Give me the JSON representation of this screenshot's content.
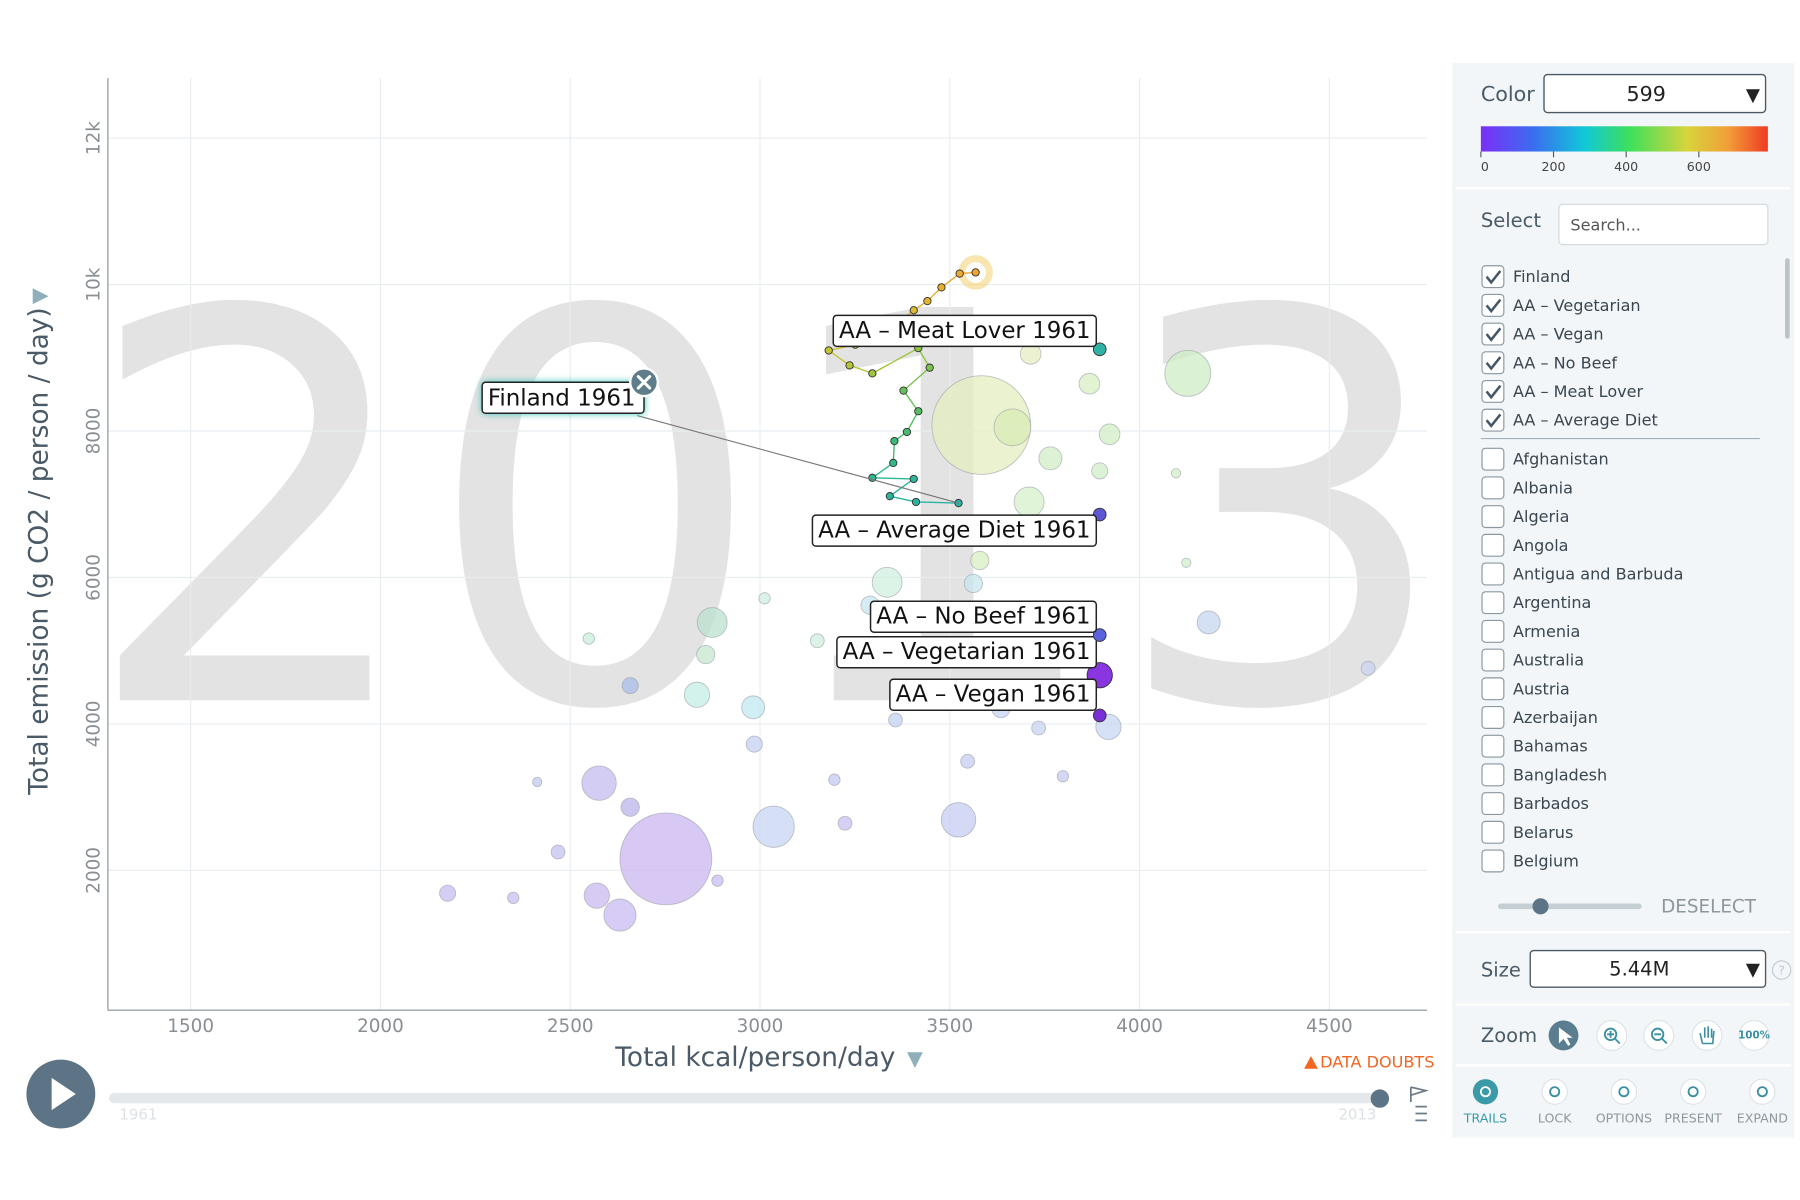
{
  "chart_data": {
    "type": "scatter",
    "watermark": "2013",
    "xlabel": "Total kcal/person/day",
    "ylabel": "Total emission (g CO2 / person / day)",
    "xlim": [
      1282,
      4757
    ],
    "ylim": [
      90,
      12820
    ],
    "xticks": [
      1500,
      2000,
      2500,
      3000,
      3500,
      4000,
      4500
    ],
    "yticks": [
      2000,
      4000,
      6000,
      8000,
      {
        "value": 10000,
        "label": "10k"
      },
      {
        "value": 12000,
        "label": "12k"
      }
    ],
    "grid": true,
    "bubbles": {
      "x": [
        2752,
        3583,
        4127,
        2576,
        3036,
        3523,
        2631,
        2570,
        2658,
        2177,
        2350,
        2468,
        2413,
        2834,
        2874,
        2857,
        2658,
        2982,
        2985,
        3196,
        3224,
        3335,
        3290,
        3562,
        3579,
        3709,
        3765,
        3895,
        3921,
        3868,
        3665,
        3713,
        3918,
        4182,
        4602,
        3734,
        3547,
        3798,
        3357,
        3635,
        2549,
        4096,
        4123,
        2888,
        3151,
        3012
      ],
      "y": [
        2157,
        8081,
        8787,
        3191,
        2596,
        2690,
        1389,
        1655,
        2862,
        1687,
        1624,
        2251,
        3207,
        4398,
        5385,
        4947,
        4523,
        4226,
        3724,
        3238,
        2643,
        5934,
        5621,
        5918,
        6232,
        7031,
        7627,
        7455,
        7956,
        8646,
        8050,
        9053,
        3959,
        5385,
        4759,
        3944,
        3489,
        3285,
        4053,
        4210,
        5166,
        7423,
        6201,
        1859,
        5135,
        5715
      ],
      "size": [
        1360,
        1572,
        340,
        191,
        275,
        191,
        167,
        103,
        54,
        42,
        21,
        31,
        14,
        103,
        144,
        54,
        42,
        85,
        42,
        21,
        31,
        144,
        54,
        54,
        54,
        144,
        85,
        42,
        69,
        69,
        218,
        69,
        103,
        85,
        31,
        31,
        31,
        21,
        31,
        54,
        21,
        14,
        14,
        21,
        31,
        21
      ],
      "colors": [
        "#cbb6f0",
        "#e4eec0",
        "#cdecc4",
        "#c6bcef",
        "#c7d5f3",
        "#c6cdf2",
        "#c8bbf1",
        "#c9b9f0",
        "#b9b4ea",
        "#c8bcf0",
        "#c9bdf0",
        "#c4c3f1",
        "#c0c8f0",
        "#c6eee6",
        "#b9e0cf",
        "#c6e6cd",
        "#a9bde8",
        "#c0e8ef",
        "#c5d0f1",
        "#c5c8f1",
        "#cbbff2",
        "#d0efe0",
        "#c8e6f0",
        "#c8e6ef",
        "#d8efc1",
        "#d6f1ca",
        "#d2eec5",
        "#cfeec8",
        "#d0eec4",
        "#d8efc1",
        "#d8ebb6",
        "#e5eec2",
        "#c8d6f3",
        "#c6d7f2",
        "#c9d3f2",
        "#c8d3f2",
        "#c7ccf2",
        "#c7c9f1",
        "#c6d0f2",
        "#c7d4f2",
        "#c8eedc",
        "#d3eec6",
        "#cfeecb",
        "#cabef1",
        "#cfeedd",
        "#cdeee3"
      ]
    },
    "series": [
      {
        "name": "Finland",
        "label": "Finland 1961",
        "x": [
          3523,
          3411,
          3342,
          3405,
          3296,
          3351,
          3354,
          3387,
          3417,
          3378,
          3447,
          3417,
          3296,
          3236,
          3181,
          3251,
          3326,
          3405,
          3441,
          3478,
          3526,
          3568
        ],
        "y": [
          7016,
          7031,
          7110,
          7345,
          7361,
          7564,
          7862,
          7987,
          8270,
          8552,
          8865,
          9132,
          8787,
          8897,
          9100,
          9179,
          9335,
          9649,
          9774,
          9962,
          10150,
          10166
        ],
        "colors": [
          "#2ab3a3",
          "#2ab3a3",
          "#2bb49c",
          "#2cb596",
          "#2eb690",
          "#33b887",
          "#3dba7a",
          "#47bc6e",
          "#55be62",
          "#66c158",
          "#79c34e",
          "#8dc545",
          "#a1c63e",
          "#b4c638",
          "#c4c534",
          "#cfc231",
          "#d8be30",
          "#dfb92f",
          "#e4b42f",
          "#e8ae30",
          "#eca932",
          "#eea433"
        ]
      },
      {
        "name": "AA – Vegetarian",
        "label": "AA – Vegetarian 1961",
        "x": [
          3895
        ],
        "y": [
          4665
        ],
        "size": [
          103
        ],
        "color": "#8a36e0"
      },
      {
        "name": "AA – Vegan",
        "label": "AA – Vegan 1961",
        "x": [
          3895
        ],
        "y": [
          4116
        ],
        "size": [
          26
        ],
        "color": "#7b2fd6"
      },
      {
        "name": "AA – No Beef",
        "label": "AA – No Beef 1961",
        "x": [
          3895
        ],
        "y": [
          5213
        ],
        "size": [
          26
        ],
        "color": "#5a62dc"
      },
      {
        "name": "AA – Meat Lover",
        "label": "AA – Meat Lover 1961",
        "x": [
          3895
        ],
        "y": [
          9116
        ],
        "size": [
          26
        ],
        "color": "#2fb3a6"
      },
      {
        "name": "AA – Average Diet",
        "label": "AA – Average Diet 1961",
        "x": [
          3895
        ],
        "y": [
          6859
        ],
        "size": [
          26
        ],
        "color": "#5e55d4"
      }
    ]
  },
  "timeline": {
    "start": "1961",
    "end": "2013"
  },
  "data_doubts": "DATA DOUBTS",
  "panel": {
    "color": {
      "label": "Color",
      "value": "599",
      "scale_lim": [
        0,
        790
      ],
      "scale_ticks": [
        0,
        200,
        400,
        600
      ]
    },
    "select": {
      "label": "Select",
      "placeholder": "Search...",
      "deselect": "DESELECT",
      "countries": [
        "Afghanistan",
        "Albania",
        "Algeria",
        "Angola",
        "Antigua and Barbuda",
        "Argentina",
        "Armenia",
        "Australia",
        "Austria",
        "Azerbaijan",
        "Bahamas",
        "Bangladesh",
        "Barbados",
        "Belarus",
        "Belgium"
      ]
    },
    "size": {
      "label": "Size",
      "value": "5.44M"
    },
    "zoom": {
      "label": "Zoom",
      "reset": "100%"
    },
    "buttons": [
      "TRAILS",
      "LOCK",
      "OPTIONS",
      "PRESENT",
      "EXPAND"
    ]
  }
}
